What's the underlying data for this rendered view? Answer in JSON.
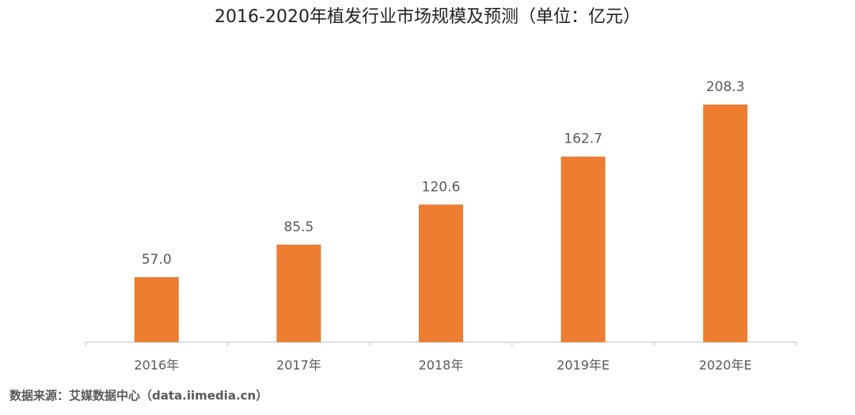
{
  "chart_data": {
    "type": "bar",
    "title": "2016-2020年植发行业市场规模及预测（单位：亿元）",
    "categories": [
      "2016年",
      "2017年",
      "2018年",
      "2019年E",
      "2020年E"
    ],
    "values": [
      57.0,
      85.5,
      120.6,
      162.7,
      208.3
    ],
    "value_labels": [
      "57.0",
      "85.5",
      "120.6",
      "162.7",
      "208.3"
    ],
    "color": "#ed7d31",
    "source": "数据来源：艾媒数据中心（data.iimedia.cn）"
  }
}
